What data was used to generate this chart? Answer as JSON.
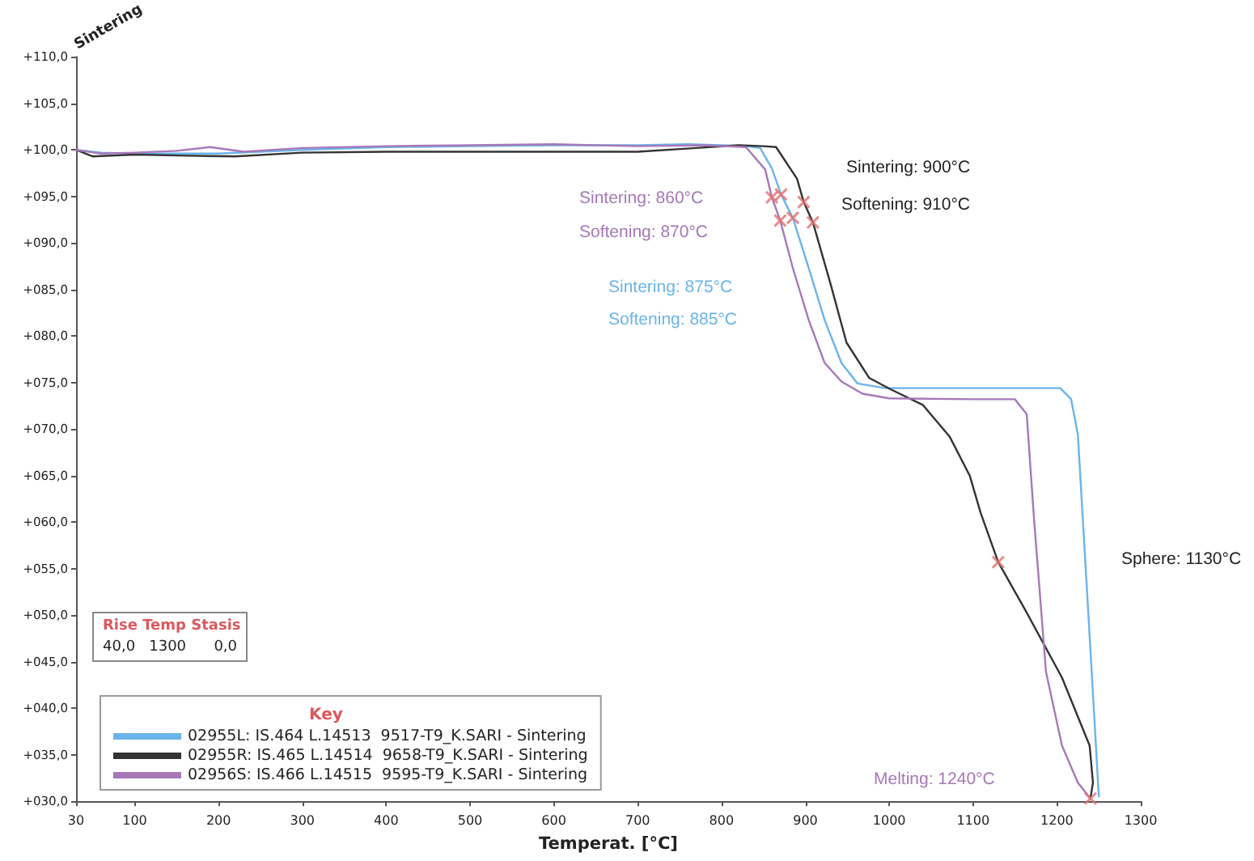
{
  "chart_data": {
    "type": "line",
    "ylabel": "Sintering",
    "xlabel": "Temperat. [°C]",
    "legend_title": "Key",
    "legend": "bottom left",
    "grid": false,
    "marker": "none",
    "xlim": [
      30,
      1300
    ],
    "xticks": [
      30,
      100,
      200,
      300,
      400,
      500,
      600,
      700,
      800,
      900,
      1000,
      1100,
      1200,
      1300
    ],
    "ylim": [
      30,
      110
    ],
    "yticks": [
      {
        "value": 30,
        "label": "+030,0"
      },
      {
        "value": 35,
        "label": "+035,0"
      },
      {
        "value": 40,
        "label": "+040,0"
      },
      {
        "value": 45,
        "label": "+045,0"
      },
      {
        "value": 50,
        "label": "+050,0"
      },
      {
        "value": 55,
        "label": "+055,0"
      },
      {
        "value": 60,
        "label": "+060,0"
      },
      {
        "value": 65,
        "label": "+065,0"
      },
      {
        "value": 70,
        "label": "+070,0"
      },
      {
        "value": 75,
        "label": "+075,0"
      },
      {
        "value": 80,
        "label": "+080,0"
      },
      {
        "value": 85,
        "label": "+085,0"
      },
      {
        "value": 90,
        "label": "+090,0"
      },
      {
        "value": 95,
        "label": "+095,0"
      },
      {
        "value": 100,
        "label": "+100,0"
      },
      {
        "value": 105,
        "label": "+105,0"
      },
      {
        "value": 110,
        "label": "+110,0"
      }
    ],
    "series": [
      {
        "name": "02955L: IS.464 L.14513  9517-T9_K.SARI - Sintering",
        "color": "#6ab4ea",
        "x": [
          30,
          60,
          100,
          200,
          300,
          400,
          500,
          600,
          700,
          760,
          800,
          830,
          846,
          860,
          871,
          885,
          904,
          923,
          943,
          962,
          995,
          1050,
          1100,
          1150,
          1204,
          1217,
          1225,
          1236,
          1244,
          1250
        ],
        "values": [
          100,
          99.7,
          99.6,
          99.6,
          100,
          100.3,
          100.4,
          100.5,
          100.5,
          100.6,
          100.5,
          100.4,
          100.2,
          98,
          95.2,
          92.7,
          87.3,
          81.7,
          77.1,
          74.9,
          74.4,
          74.4,
          74.4,
          74.4,
          74.4,
          73.2,
          69.4,
          52.5,
          40,
          30.5
        ]
      },
      {
        "name": "02955R: IS.465 L.14514  9658-T9_K.SARI - Sintering",
        "color": "#333333",
        "x": [
          30,
          50,
          100,
          150,
          220,
          300,
          400,
          500,
          600,
          700,
          770,
          820,
          850,
          865,
          890,
          898,
          909,
          930,
          949,
          976,
          1001,
          1040,
          1072,
          1096,
          1109,
          1130,
          1162,
          1206,
          1239,
          1243,
          1240
        ],
        "values": [
          100,
          99.3,
          99.5,
          99.4,
          99.3,
          99.7,
          99.8,
          99.8,
          99.8,
          99.8,
          100.2,
          100.5,
          100.4,
          100.3,
          96.9,
          94.4,
          92.2,
          85.6,
          79.3,
          75.5,
          74.3,
          72.6,
          69.2,
          65,
          61,
          55.7,
          50.6,
          43.3,
          36,
          32,
          30.3
        ]
      },
      {
        "name": "02956S: IS.466 L.14515  9595-T9_K.SARI - Sintering",
        "color": "#a678b8",
        "x": [
          30,
          60,
          100,
          150,
          190,
          230,
          300,
          400,
          500,
          600,
          700,
          780,
          829,
          852,
          860,
          870,
          885,
          904,
          923,
          943,
          968,
          1000,
          1100,
          1150,
          1164,
          1173,
          1187,
          1206,
          1225,
          1240
        ],
        "values": [
          100,
          99.6,
          99.7,
          99.9,
          100.3,
          99.8,
          100.2,
          100.4,
          100.5,
          100.6,
          100.4,
          100.5,
          100.3,
          97.9,
          94.9,
          92.4,
          87.3,
          81.7,
          77.1,
          75.1,
          73.8,
          73.3,
          73.2,
          73.2,
          71.6,
          60,
          43.9,
          36,
          32,
          30.3
        ]
      },
      {
        "type": "scatter",
        "color": "#e07070",
        "marker": "cross",
        "x": [
          860,
          870,
          871,
          885,
          898,
          909,
          1130,
          1240
        ],
        "values": [
          94.9,
          92.4,
          95.2,
          92.7,
          94.4,
          92.2,
          55.7,
          30.3
        ]
      }
    ],
    "annotations": [
      "Sintering: 860°C",
      "Softening: 870°C",
      "Sintering: 875°C",
      "Softening: 885°C",
      "Sintering: 900°C",
      "Softening: 910°C",
      "Sphere: 1130°C",
      "Melting: 1240°C",
      "Rise Temp Stasis",
      "40,0   1300      0,0"
    ]
  }
}
